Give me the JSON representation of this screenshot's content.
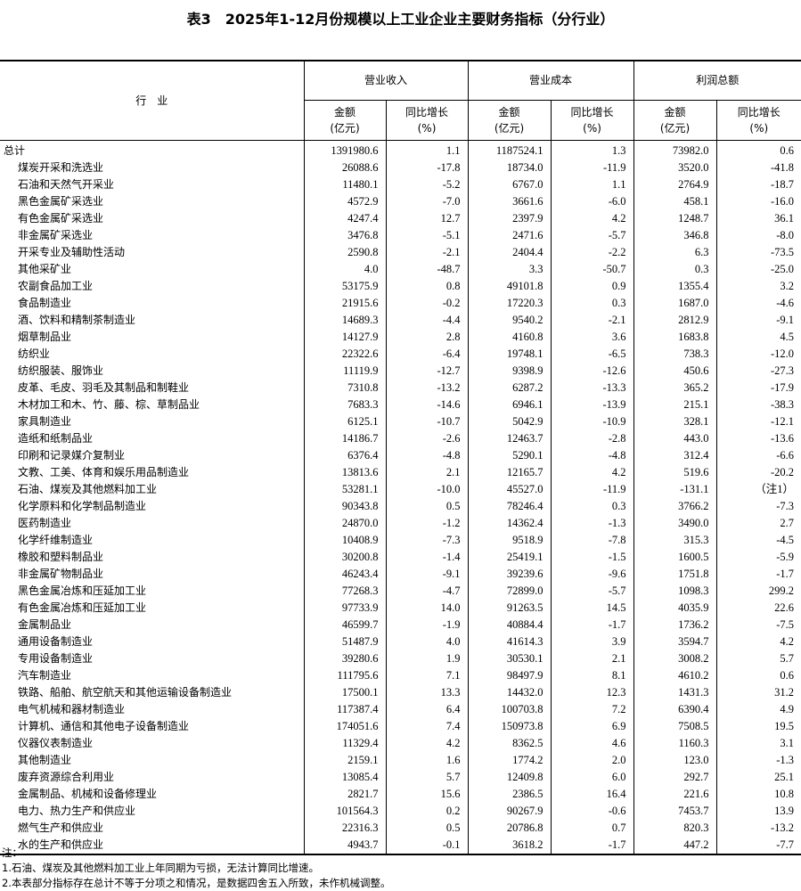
{
  "title": "表3　2025年1-12月份规模以上工业企业主要财务指标（分行业）",
  "header": {
    "industry": "行　业",
    "groups": [
      "营业收入",
      "营业成本",
      "利润总额"
    ],
    "amount": "金额",
    "amount_unit": "(亿元)",
    "growth": "同比增长",
    "growth_unit": "(%)"
  },
  "rows": [
    [
      "总计",
      "1391980.6",
      "1.1",
      "1187524.1",
      "1.3",
      "73982.0",
      "0.6"
    ],
    [
      "煤炭开采和洗选业",
      "26088.6",
      "-17.8",
      "18734.0",
      "-11.9",
      "3520.0",
      "-41.8"
    ],
    [
      "石油和天然气开采业",
      "11480.1",
      "-5.2",
      "6767.0",
      "1.1",
      "2764.9",
      "-18.7"
    ],
    [
      "黑色金属矿采选业",
      "4572.9",
      "-7.0",
      "3661.6",
      "-6.0",
      "458.1",
      "-16.0"
    ],
    [
      "有色金属矿采选业",
      "4247.4",
      "12.7",
      "2397.9",
      "4.2",
      "1248.7",
      "36.1"
    ],
    [
      "非金属矿采选业",
      "3476.8",
      "-5.1",
      "2471.6",
      "-5.7",
      "346.8",
      "-8.0"
    ],
    [
      "开采专业及辅助性活动",
      "2590.8",
      "-2.1",
      "2404.4",
      "-2.2",
      "6.3",
      "-73.5"
    ],
    [
      "其他采矿业",
      "4.0",
      "-48.7",
      "3.3",
      "-50.7",
      "0.3",
      "-25.0"
    ],
    [
      "农副食品加工业",
      "53175.9",
      "0.8",
      "49101.8",
      "0.9",
      "1355.4",
      "3.2"
    ],
    [
      "食品制造业",
      "21915.6",
      "-0.2",
      "17220.3",
      "0.3",
      "1687.0",
      "-4.6"
    ],
    [
      "酒、饮料和精制茶制造业",
      "14689.3",
      "-4.4",
      "9540.2",
      "-2.1",
      "2812.9",
      "-9.1"
    ],
    [
      "烟草制品业",
      "14127.9",
      "2.8",
      "4160.8",
      "3.6",
      "1683.8",
      "4.5"
    ],
    [
      "纺织业",
      "22322.6",
      "-6.4",
      "19748.1",
      "-6.5",
      "738.3",
      "-12.0"
    ],
    [
      "纺织服装、服饰业",
      "11119.9",
      "-12.7",
      "9398.9",
      "-12.6",
      "450.6",
      "-27.3"
    ],
    [
      "皮革、毛皮、羽毛及其制品和制鞋业",
      "7310.8",
      "-13.2",
      "6287.2",
      "-13.3",
      "365.2",
      "-17.9"
    ],
    [
      "木材加工和木、竹、藤、棕、草制品业",
      "7683.3",
      "-14.6",
      "6946.1",
      "-13.9",
      "215.1",
      "-38.3"
    ],
    [
      "家具制造业",
      "6125.1",
      "-10.7",
      "5042.9",
      "-10.9",
      "328.1",
      "-12.1"
    ],
    [
      "造纸和纸制品业",
      "14186.7",
      "-2.6",
      "12463.7",
      "-2.8",
      "443.0",
      "-13.6"
    ],
    [
      "印刷和记录媒介复制业",
      "6376.4",
      "-4.8",
      "5290.1",
      "-4.8",
      "312.4",
      "-6.6"
    ],
    [
      "文教、工美、体育和娱乐用品制造业",
      "13813.6",
      "2.1",
      "12165.7",
      "4.2",
      "519.6",
      "-20.2"
    ],
    [
      "石油、煤炭及其他燃料加工业",
      "53281.1",
      "-10.0",
      "45527.0",
      "-11.9",
      "-131.1",
      "（注1）"
    ],
    [
      "化学原料和化学制品制造业",
      "90343.8",
      "0.5",
      "78246.4",
      "0.3",
      "3766.2",
      "-7.3"
    ],
    [
      "医药制造业",
      "24870.0",
      "-1.2",
      "14362.4",
      "-1.3",
      "3490.0",
      "2.7"
    ],
    [
      "化学纤维制造业",
      "10408.9",
      "-7.3",
      "9518.9",
      "-7.8",
      "315.3",
      "-4.5"
    ],
    [
      "橡胶和塑料制品业",
      "30200.8",
      "-1.4",
      "25419.1",
      "-1.5",
      "1600.5",
      "-5.9"
    ],
    [
      "非金属矿物制品业",
      "46243.4",
      "-9.1",
      "39239.6",
      "-9.6",
      "1751.8",
      "-1.7"
    ],
    [
      "黑色金属冶炼和压延加工业",
      "77268.3",
      "-4.7",
      "72899.0",
      "-5.7",
      "1098.3",
      "299.2"
    ],
    [
      "有色金属冶炼和压延加工业",
      "97733.9",
      "14.0",
      "91263.5",
      "14.5",
      "4035.9",
      "22.6"
    ],
    [
      "金属制品业",
      "46599.7",
      "-1.9",
      "40884.4",
      "-1.7",
      "1736.2",
      "-7.5"
    ],
    [
      "通用设备制造业",
      "51487.9",
      "4.0",
      "41614.3",
      "3.9",
      "3594.7",
      "4.2"
    ],
    [
      "专用设备制造业",
      "39280.6",
      "1.9",
      "30530.1",
      "2.1",
      "3008.2",
      "5.7"
    ],
    [
      "汽车制造业",
      "111795.6",
      "7.1",
      "98497.9",
      "8.1",
      "4610.2",
      "0.6"
    ],
    [
      "铁路、船舶、航空航天和其他运输设备制造业",
      "17500.1",
      "13.3",
      "14432.0",
      "12.3",
      "1431.3",
      "31.2"
    ],
    [
      "电气机械和器材制造业",
      "117387.4",
      "6.4",
      "100703.8",
      "7.2",
      "6390.4",
      "4.9"
    ],
    [
      "计算机、通信和其他电子设备制造业",
      "174051.6",
      "7.4",
      "150973.8",
      "6.9",
      "7508.5",
      "19.5"
    ],
    [
      "仪器仪表制造业",
      "11329.4",
      "4.2",
      "8362.5",
      "4.6",
      "1160.3",
      "3.1"
    ],
    [
      "其他制造业",
      "2159.1",
      "1.6",
      "1774.2",
      "2.0",
      "123.0",
      "-1.3"
    ],
    [
      "废弃资源综合利用业",
      "13085.4",
      "5.7",
      "12409.8",
      "6.0",
      "292.7",
      "25.1"
    ],
    [
      "金属制品、机械和设备修理业",
      "2821.7",
      "15.6",
      "2386.5",
      "16.4",
      "221.6",
      "10.8"
    ],
    [
      "电力、热力生产和供应业",
      "101564.3",
      "0.2",
      "90267.9",
      "-0.6",
      "7453.7",
      "13.9"
    ],
    [
      "燃气生产和供应业",
      "22316.3",
      "0.5",
      "20786.8",
      "0.7",
      "820.3",
      "-13.2"
    ],
    [
      "水的生产和供应业",
      "4943.7",
      "-0.1",
      "3618.2",
      "-1.7",
      "447.2",
      "-7.7"
    ]
  ],
  "notes": [
    "注：",
    "1.石油、煤炭及其他燃料加工业上年同期为亏损，无法计算同比增速。",
    "2.本表部分指标存在总计不等于分项之和情况，是数据四舍五入所致，未作机械调整。"
  ]
}
